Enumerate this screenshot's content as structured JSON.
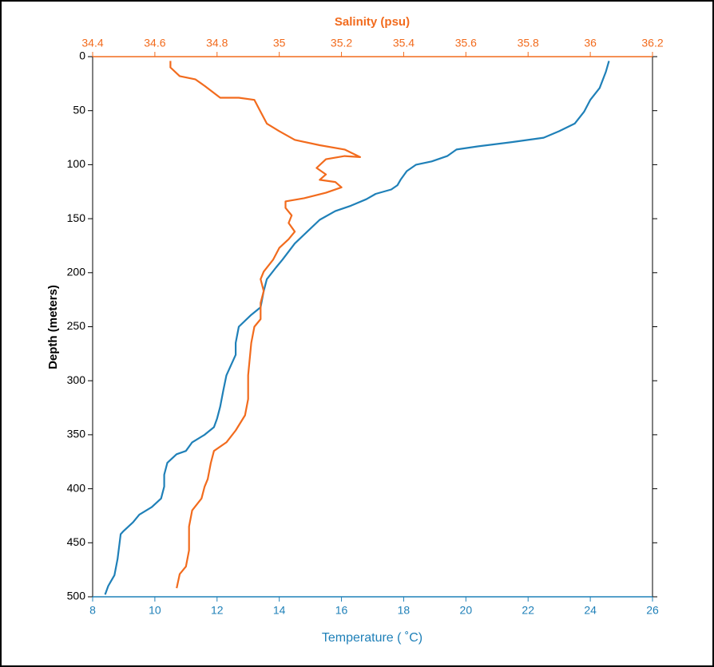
{
  "chart_data": {
    "type": "line",
    "xlabel": "Temperature ( ˚C)",
    "x2label": "Salinity (psu)",
    "ylabel": "Depth (meters)",
    "xlim": [
      8,
      26
    ],
    "xticks": [
      8,
      10,
      12,
      14,
      16,
      18,
      20,
      22,
      24,
      26
    ],
    "x2lim": [
      34.4,
      36.2
    ],
    "x2ticks": [
      34.4,
      34.6,
      34.8,
      35,
      35.2,
      35.4,
      35.6,
      35.8,
      36,
      36.2
    ],
    "ylim": [
      0,
      500
    ],
    "yticks": [
      0,
      50,
      100,
      150,
      200,
      250,
      300,
      350,
      400,
      450,
      500
    ],
    "y_inverted": true,
    "xcolor": "#1f80b8",
    "x2color": "#f26b1d",
    "series": [
      {
        "color": "#1f80b8",
        "axis": "x",
        "x": [
          24.6,
          24.5,
          24.3,
          24.0,
          23.8,
          23.5,
          23.0,
          22.5,
          21.5,
          20.4,
          19.7,
          19.4,
          18.9,
          18.4,
          18.1,
          17.9,
          17.8,
          17.6,
          17.1,
          16.8,
          16.3,
          15.8,
          15.3,
          14.9,
          14.5,
          14.1,
          13.9,
          13.6,
          13.5,
          13.4,
          13.1,
          12.7,
          12.6,
          12.6,
          12.3,
          12.2,
          12.1,
          12.0,
          11.9,
          11.6,
          11.2,
          11.0,
          10.7,
          10.4,
          10.3,
          10.3,
          10.2,
          9.9,
          9.5,
          9.3,
          9.0,
          8.9,
          8.8,
          8.7,
          8.6,
          8.5,
          8.4
        ],
        "values": [
          4,
          14,
          29,
          40,
          51,
          62,
          69,
          75,
          79,
          83,
          86,
          92,
          97,
          100,
          106,
          114,
          119,
          123,
          127,
          132,
          138,
          143,
          151,
          162,
          173,
          188,
          195,
          206,
          217,
          232,
          239,
          250,
          265,
          276,
          295,
          309,
          324,
          335,
          343,
          350,
          357,
          365,
          368,
          376,
          387,
          398,
          409,
          417,
          424,
          431,
          439,
          442,
          465,
          480,
          485,
          490,
          498
        ]
      },
      {
        "color": "#f26b1d",
        "axis": "x2",
        "x": [
          34.65,
          34.65,
          34.68,
          34.73,
          34.76,
          34.81,
          34.87,
          34.92,
          34.94,
          34.96,
          35.0,
          35.05,
          35.13,
          35.21,
          35.26,
          35.21,
          35.15,
          35.12,
          35.15,
          35.13,
          35.18,
          35.2,
          35.15,
          35.08,
          35.02,
          35.02,
          35.04,
          35.03,
          35.05,
          35.03,
          35.0,
          34.98,
          34.95,
          34.94,
          34.95,
          34.94,
          34.94,
          34.92,
          34.91,
          34.9,
          34.9,
          34.89,
          34.86,
          34.83,
          34.79,
          34.78,
          34.77,
          34.76,
          34.75,
          34.72,
          34.71,
          34.71,
          34.7,
          34.68,
          34.67
        ],
        "values": [
          4,
          10,
          18,
          21,
          27,
          38,
          38,
          40,
          51,
          62,
          69,
          77,
          82,
          86,
          93,
          92,
          95,
          103,
          109,
          114,
          116,
          121,
          126,
          131,
          134,
          140,
          147,
          154,
          162,
          169,
          177,
          188,
          199,
          206,
          217,
          228,
          243,
          250,
          265,
          295,
          317,
          332,
          346,
          357,
          365,
          376,
          391,
          398,
          409,
          420,
          435,
          457,
          472,
          479,
          492
        ]
      }
    ]
  }
}
